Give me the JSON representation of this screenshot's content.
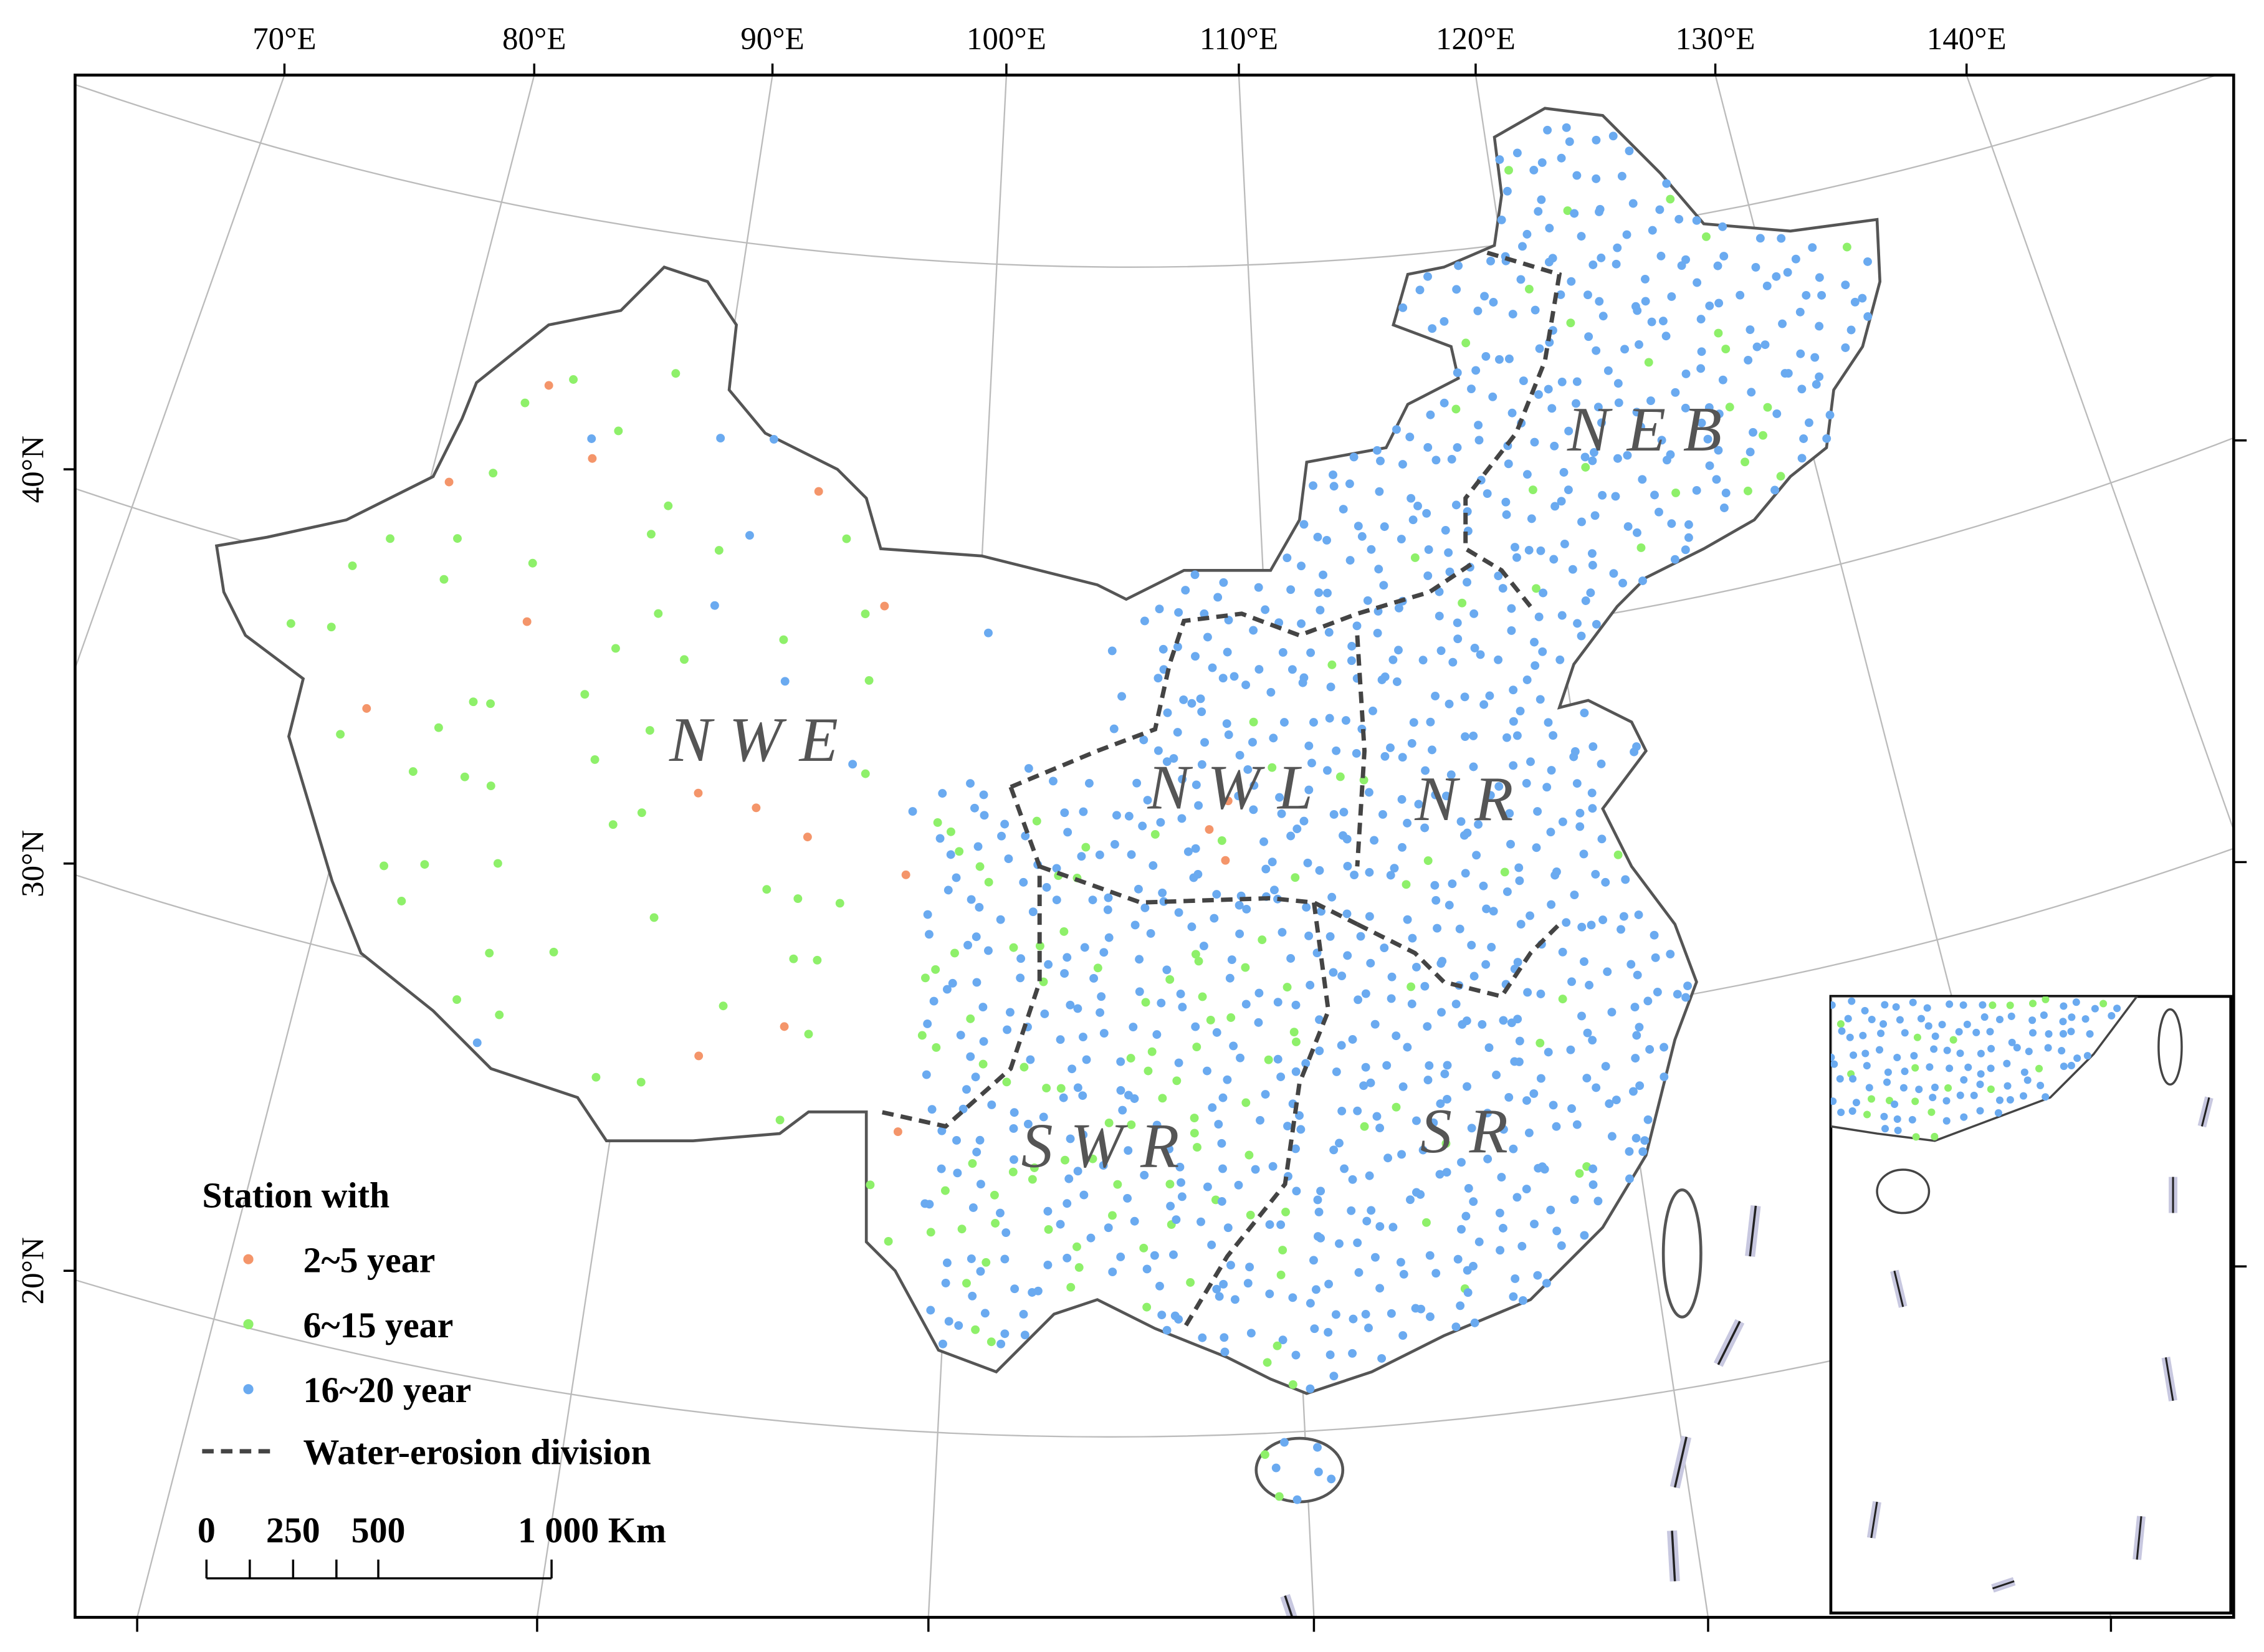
{
  "map": {
    "longitude_labels": [
      "70°E",
      "80°E",
      "90°E",
      "100°E",
      "110°E",
      "120°E",
      "130°E",
      "140°E"
    ],
    "latitude_labels": [
      "40°N",
      "30°N",
      "20°N"
    ],
    "region_labels": [
      "NEB",
      "NWE",
      "NWL",
      "NR",
      "SWR",
      "SR"
    ],
    "legend": {
      "title": "Station with",
      "items": [
        "2~5 year",
        "6~15 year",
        "16~20 year",
        "Water-erosion division"
      ]
    },
    "scale_bar": {
      "labels": [
        "0",
        "250",
        "500",
        "1 000 Km"
      ]
    }
  }
}
